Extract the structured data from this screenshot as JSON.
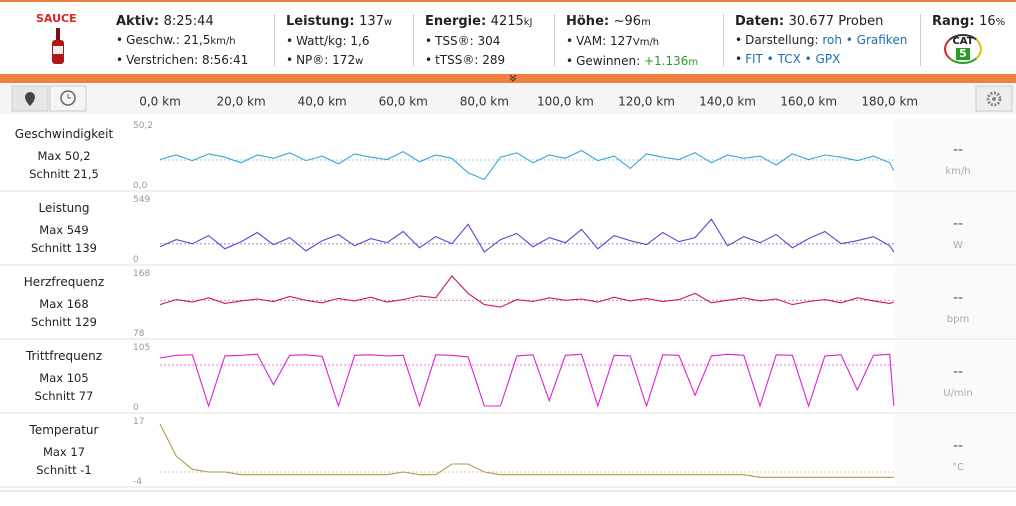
{
  "header": {
    "logo": "SAUCE",
    "groups": [
      {
        "title": {
          "label": "Aktiv:",
          "value": "8:25:44"
        },
        "rows": [
          {
            "label": "Geschw.:",
            "value": "21,5",
            "unit": "km/h"
          },
          {
            "label": "Verstrichen:",
            "value": "8:56:41"
          }
        ]
      },
      {
        "title": {
          "label": "Leistung:",
          "value": "137",
          "unit": "w"
        },
        "rows": [
          {
            "label": "Watt/kg:",
            "value": "1,6"
          },
          {
            "label": "NP®:",
            "value": "172",
            "unit": "w"
          }
        ]
      },
      {
        "title": {
          "label": "Energie:",
          "value": "4215",
          "unit": "kJ"
        },
        "rows": [
          {
            "label": "TSS®:",
            "value": "304"
          },
          {
            "label": "tTSS®:",
            "value": "289"
          }
        ]
      },
      {
        "title": {
          "label": "Höhe:",
          "value": "~96",
          "unit": "m"
        },
        "rows": [
          {
            "label": "VAM:",
            "value": "127",
            "unit": "Vm/h"
          },
          {
            "label": "Gewinnen:",
            "value": "+1.136",
            "unit": "m"
          }
        ]
      },
      {
        "title": {
          "label": "Daten:",
          "value": "30.677 Proben"
        },
        "rows": [
          {
            "label": "Darstellung:",
            "links": [
              "roh",
              "Grafiken"
            ]
          },
          {
            "links": [
              "FIT",
              "TCX",
              "GPX"
            ]
          }
        ]
      },
      {
        "title": {
          "label": "Rang:",
          "value": "16",
          "unit": "%"
        },
        "badge": [
          "CAT",
          "5"
        ]
      }
    ]
  },
  "chart_data": {
    "type": "line",
    "xlim": [
      0,
      181.3
    ],
    "xticks": [
      {
        "value": 0,
        "label": "0,0 km"
      },
      {
        "value": 20,
        "label": "20,0 km"
      },
      {
        "value": 40,
        "label": "40,0 km"
      },
      {
        "value": 60,
        "label": "60,0 km"
      },
      {
        "value": 80,
        "label": "80,0 km"
      },
      {
        "value": 100,
        "label": "100,0 km"
      },
      {
        "value": 120,
        "label": "120,0 km"
      },
      {
        "value": 140,
        "label": "140,0 km"
      },
      {
        "value": 160,
        "label": "160,0 km"
      },
      {
        "value": 180,
        "label": "180,0 km"
      }
    ],
    "x": [
      0,
      4,
      8,
      12,
      16,
      20,
      24,
      28,
      32,
      36,
      40,
      44,
      48,
      52,
      56,
      60,
      64,
      68,
      72,
      76,
      80,
      84,
      88,
      92,
      96,
      100,
      104,
      108,
      112,
      116,
      120,
      124,
      128,
      132,
      136,
      140,
      144,
      148,
      152,
      156,
      160,
      164,
      168,
      172,
      176,
      180,
      181
    ],
    "series": [
      {
        "name": "Geschwindigkeit",
        "color": "#3aa6d8",
        "stats": [
          "Max 50,2",
          "Schnitt 21,5"
        ],
        "mean": 21.5,
        "unit": "km/h",
        "current": "--",
        "ylim": [
          0,
          50.2
        ],
        "yticks": [
          {
            "value": 0,
            "label": "0,0"
          },
          {
            "value": 50.2,
            "label": "50,2"
          }
        ],
        "values": [
          22,
          26,
          21,
          27,
          24,
          19,
          26,
          23,
          28,
          21,
          25,
          18,
          27,
          24,
          22,
          29,
          20,
          26,
          23,
          10,
          4,
          24,
          28,
          19,
          26,
          23,
          30,
          21,
          25,
          14,
          27,
          24,
          22,
          28,
          19,
          26,
          23,
          25,
          17,
          27,
          22,
          26,
          24,
          21,
          25,
          19,
          12
        ]
      },
      {
        "name": "Leistung",
        "color": "#6a3fd0",
        "stats": [
          "Max 549",
          "Schnitt 139"
        ],
        "mean": 139,
        "unit": "W",
        "current": "--",
        "ylim": [
          0,
          549
        ],
        "yticks": [
          0,
          549
        ],
        "values": [
          110,
          180,
          140,
          220,
          90,
          160,
          250,
          130,
          200,
          70,
          170,
          230,
          120,
          190,
          150,
          260,
          100,
          210,
          140,
          330,
          60,
          180,
          240,
          110,
          200,
          150,
          280,
          90,
          220,
          170,
          130,
          250,
          160,
          200,
          380,
          120,
          210,
          150,
          230,
          100,
          190,
          260,
          140,
          170,
          210,
          120,
          60
        ]
      },
      {
        "name": "Herzfrequenz",
        "color": "#d01850",
        "stats": [
          "Max 168",
          "Schnitt 129"
        ],
        "mean": 129,
        "unit": "bpm",
        "current": "--",
        "ylim": [
          78,
          168
        ],
        "yticks": [
          78,
          168
        ],
        "values": [
          122,
          130,
          126,
          133,
          124,
          128,
          131,
          127,
          135,
          129,
          125,
          132,
          128,
          134,
          126,
          130,
          136,
          133,
          168,
          140,
          122,
          118,
          130,
          127,
          133,
          129,
          131,
          126,
          134,
          128,
          132,
          127,
          130,
          140,
          125,
          129,
          133,
          128,
          131,
          122,
          127,
          130,
          125,
          133,
          128,
          124,
          126
        ]
      },
      {
        "name": "Trittfrequenz",
        "color": "#e020d8",
        "stats": [
          "Max 105",
          "Schnitt 77"
        ],
        "mean": 77,
        "unit": "U/min",
        "current": "--",
        "ylim": [
          0,
          105
        ],
        "yticks": [
          0,
          105
        ],
        "values": [
          90,
          95,
          96,
          0,
          94,
          95,
          97,
          40,
          95,
          96,
          93,
          0,
          95,
          96,
          94,
          95,
          0,
          96,
          95,
          92,
          0,
          0,
          94,
          96,
          10,
          95,
          97,
          0,
          95,
          94,
          0,
          96,
          95,
          20,
          94,
          97,
          95,
          0,
          96,
          95,
          0,
          94,
          96,
          30,
          95,
          97,
          0
        ]
      },
      {
        "name": "Temperatur",
        "color": "#b09a50",
        "stats": [
          "Max 17",
          "Schnitt -1"
        ],
        "mean": -1,
        "unit": "°C",
        "current": "--",
        "ylim": [
          -4,
          17
        ],
        "yticks": [
          -4,
          17
        ],
        "values": [
          17,
          5,
          0,
          -1,
          -1,
          -2,
          -2,
          -2,
          -2,
          -2,
          -2,
          -2,
          -2,
          -2,
          -2,
          -1,
          -2,
          -2,
          2,
          2,
          -1,
          -2,
          -2,
          -2,
          -2,
          -2,
          -2,
          -2,
          -2,
          -2,
          -2,
          -2,
          -2,
          -2,
          -2,
          -2,
          -2,
          -3,
          -3,
          -3,
          -3,
          -3,
          -3,
          -3,
          -3,
          -3,
          -3
        ]
      }
    ]
  }
}
